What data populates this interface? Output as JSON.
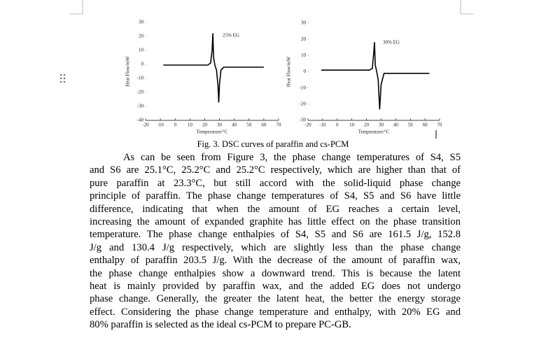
{
  "chart_data": [
    {
      "type": "line",
      "ylabel": "Heat Flow/mW",
      "xlabel": "Temperature/°C",
      "annotation": "25% EG",
      "xlim": [
        -20,
        70
      ],
      "xticks": [
        -20,
        -10,
        0,
        10,
        20,
        30,
        40,
        50,
        60,
        70
      ],
      "ylim": [
        -40,
        30
      ],
      "yticks": [
        -40,
        -30,
        -20,
        -10,
        0,
        10,
        20,
        30
      ],
      "x": [
        -8,
        22,
        24,
        25,
        25.5,
        26,
        27,
        28,
        29,
        29.5,
        30,
        31,
        33,
        60
      ],
      "series": [
        {
          "color": "#000000",
          "values": [
            -0.5,
            -0.5,
            1,
            10,
            22,
            5,
            -1,
            -4,
            -15,
            -27,
            -14,
            -4,
            -2,
            -2
          ]
        }
      ]
    },
    {
      "type": "line",
      "ylabel": "Heat Flow/mW",
      "xlabel": "Temperature/°C",
      "annotation": "30% EG",
      "xlim": [
        -20,
        70
      ],
      "xticks": [
        -20,
        -10,
        0,
        10,
        20,
        30,
        40,
        50,
        60,
        70
      ],
      "ylim": [
        -30,
        30
      ],
      "yticks": [
        -30,
        -20,
        -10,
        0,
        10,
        20,
        30
      ],
      "x": [
        -11,
        22,
        24,
        25,
        25.5,
        26,
        27,
        28,
        28.5,
        29,
        30,
        32,
        63
      ],
      "series": [
        {
          "color": "#000000",
          "values": [
            1,
            1,
            2,
            12,
            18,
            4,
            0,
            -5,
            -14,
            -23,
            -8,
            -1,
            -1
          ]
        }
      ]
    }
  ],
  "caption": "Fig. 3. DSC curves of paraffin and cs-PCM",
  "body": [
    "As can be seen from Figure 3, the phase change temperatures of S4, S5",
    "and S6 are 25.1°C, 25.2°C and 25.2°C respectively, which are higher than that of",
    "pure paraffin at 23.3°C, but still accord with the solid-liquid phase change",
    "principle of paraffin. The phase change temperatures of S4, S5 and S6 have little",
    "difference, indicating that when the amount of EG reaches a certain level,",
    "increasing the amount of expanded graphite has little effect on the phase transition",
    "temperature. The phase change enthalpies of S4, S5 and S6 are 161.5 J/g, 152.8",
    "J/g and 130.4 J/g respectively, which are slightly less than the phase change",
    "enthalpy of paraffin 203.5 J/g. With the decrease of the amount of paraffin wax,",
    "the phase change enthalpies show a downward trend. This is because the latent",
    "heat is mainly provided by paraffin wax, and the added EG does not undergo",
    "phase change. Generally, the greater the latent heat, the better the energy storage",
    "effect. Considering the phase change temperature and enthalpy, with 20% EG and",
    "80% paraffin is selected as the ideal cs-PCM to prepare PC-GB."
  ]
}
